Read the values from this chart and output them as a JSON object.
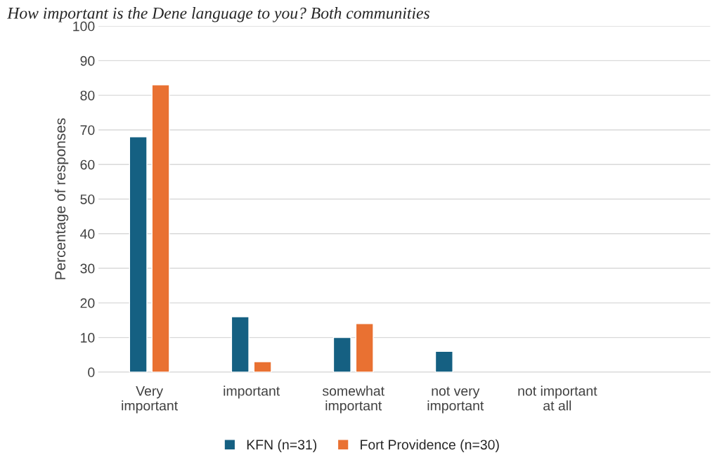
{
  "chart_data": {
    "type": "bar",
    "title": "How important is the Dene language to you? Both communities",
    "ylabel": "Percentage of responses",
    "categories": [
      "Very\nimportant",
      "important",
      "somewhat\nimportant",
      "not very\nimportant",
      "not important\nat all",
      null
    ],
    "series": [
      {
        "name": "KFN (n=31)",
        "color": "#156082",
        "values": [
          68,
          16,
          10,
          6,
          null,
          null
        ]
      },
      {
        "name": "Fort Providence (n=30)",
        "color": "#e97132",
        "values": [
          83,
          3,
          14,
          null,
          null,
          null
        ]
      }
    ],
    "ylim": [
      0,
      100
    ],
    "yticks": [
      0,
      10,
      20,
      30,
      40,
      50,
      60,
      70,
      80,
      90,
      100
    ],
    "grid": "y",
    "legend": "bottom"
  }
}
